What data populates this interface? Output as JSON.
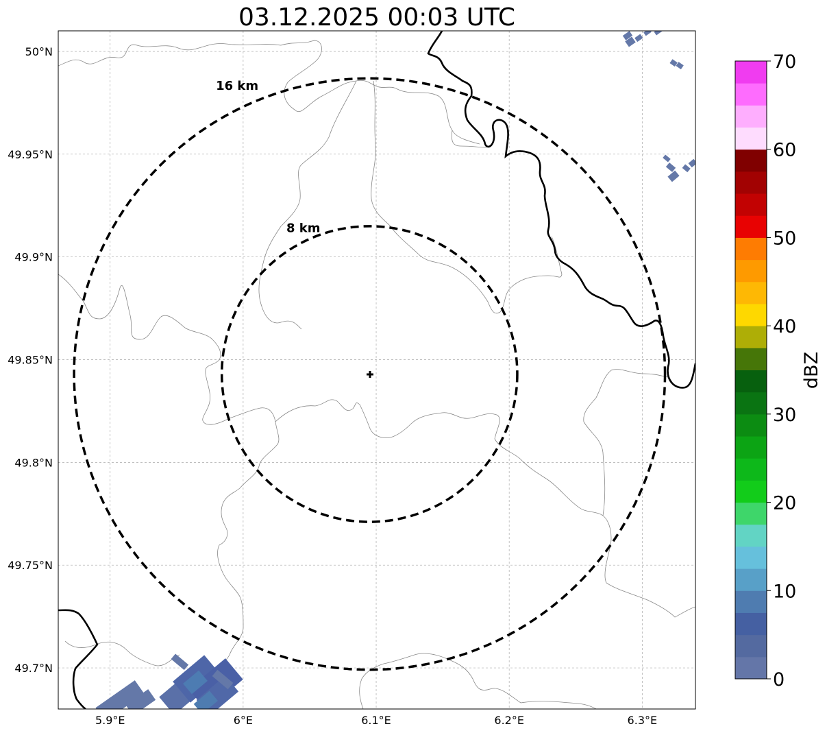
{
  "title": "03.12.2025 00:03 UTC",
  "axes": {
    "lon_ticks": [
      {
        "value": 5.9,
        "label": "5.9°E"
      },
      {
        "value": 6.0,
        "label": "6°E"
      },
      {
        "value": 6.1,
        "label": "6.1°E"
      },
      {
        "value": 6.2,
        "label": "6.2°E"
      },
      {
        "value": 6.3,
        "label": "6.3°E"
      }
    ],
    "lat_ticks": [
      {
        "value": 50.0,
        "label": "50°N"
      },
      {
        "value": 49.95,
        "label": "49.95°N"
      },
      {
        "value": 49.9,
        "label": "49.9°N"
      },
      {
        "value": 49.85,
        "label": "49.85°N"
      },
      {
        "value": 49.8,
        "label": "49.8°N"
      },
      {
        "value": 49.75,
        "label": "49.75°N"
      },
      {
        "value": 49.7,
        "label": "49.7°N"
      }
    ],
    "lon_range": [
      5.861,
      6.34
    ],
    "lat_range": [
      49.68,
      50.01
    ],
    "grid": true
  },
  "radar": {
    "center_lon": 6.095,
    "center_lat": 49.843,
    "rings": [
      {
        "label": "8 km",
        "radius_km": 8
      },
      {
        "label": "16 km",
        "radius_km": 16
      }
    ]
  },
  "colorbar": {
    "label": "dBZ",
    "min": 0,
    "max": 70,
    "ticks": [
      {
        "value": 0,
        "label": "0"
      },
      {
        "value": 10,
        "label": "10"
      },
      {
        "value": 20,
        "label": "20"
      },
      {
        "value": 30,
        "label": "30"
      },
      {
        "value": 40,
        "label": "40"
      },
      {
        "value": 50,
        "label": "50"
      },
      {
        "value": 60,
        "label": "60"
      },
      {
        "value": 70,
        "label": "70"
      }
    ],
    "colors": [
      "#6476a8",
      "#546aa0",
      "#4560a2",
      "#4f7cb0",
      "#58a0c8",
      "#66c0dc",
      "#62d4c4",
      "#3ed66a",
      "#12cc1a",
      "#0db81a",
      "#0ca414",
      "#0c8c12",
      "#0a7412",
      "#07600e",
      "#467608",
      "#aeae06",
      "#fed800",
      "#feb804",
      "#fe9a00",
      "#fe7c02",
      "#e80202",
      "#c20202",
      "#a20202",
      "#800000",
      "#fedcfe",
      "#feaefe",
      "#fe6cfe",
      "#f03cf0"
    ]
  },
  "precip_colors": {
    "light": "#6478a8",
    "medium": "#4e7cb0",
    "darker": "#4a64a6"
  }
}
